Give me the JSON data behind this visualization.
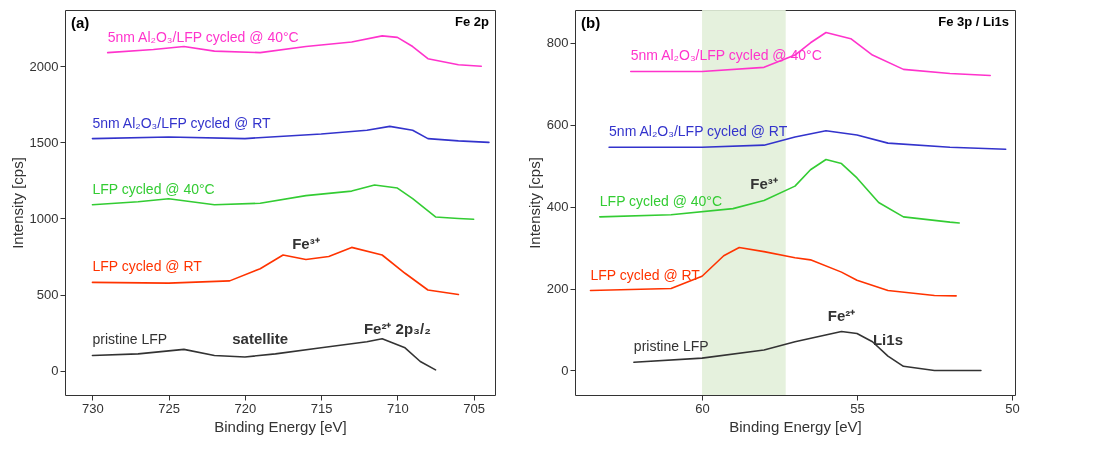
{
  "chart_data": [
    {
      "type": "line",
      "title": "(a)",
      "xlabel": "Binding Energy [eV]",
      "ylabel": "Intensity [cps]",
      "xlim": [
        731.8,
        703.6
      ],
      "xticks": [
        730,
        725,
        720,
        715,
        710,
        705
      ],
      "ylim": [
        -160,
        2370
      ],
      "yticks": [
        0,
        500,
        1000,
        1500,
        2000
      ],
      "grid": false,
      "legend": false,
      "series": [
        {
          "name": "5nm Al₂O₃/LFP cycled @ 40°C",
          "color": "#ff33cc",
          "x": [
            729,
            726,
            724,
            722,
            719,
            716,
            714,
            713,
            711,
            710,
            709,
            708,
            706,
            704.5
          ],
          "values": [
            2090,
            2110,
            2130,
            2100,
            2090,
            2130,
            2150,
            2160,
            2200,
            2190,
            2130,
            2050,
            2010,
            2000
          ]
        },
        {
          "name": "5nm Al₂O₃/LFP cycled @ RT",
          "color": "#3333cc",
          "x": [
            730,
            725,
            720,
            715,
            712,
            710.5,
            709,
            708,
            706,
            704
          ],
          "values": [
            1525,
            1535,
            1525,
            1555,
            1580,
            1605,
            1580,
            1525,
            1510,
            1500
          ]
        },
        {
          "name": "LFP cycled @ 40°C",
          "color": "#33cc33",
          "x": [
            730,
            727,
            725,
            722,
            719,
            716,
            713,
            711.5,
            710,
            709,
            707.5,
            706,
            705
          ],
          "values": [
            1090,
            1110,
            1130,
            1090,
            1100,
            1150,
            1180,
            1220,
            1200,
            1130,
            1010,
            1000,
            995
          ]
        },
        {
          "name": "LFP cycled @ RT",
          "color": "#ff3300",
          "x": [
            730,
            725,
            721,
            719,
            717.5,
            716,
            714.5,
            713,
            711,
            709.5,
            708,
            706
          ],
          "values": [
            580,
            575,
            590,
            670,
            760,
            730,
            750,
            810,
            760,
            640,
            530,
            500
          ]
        },
        {
          "name": "pristine LFP",
          "color": "#333333",
          "x": [
            730,
            727,
            724,
            722,
            720,
            718,
            715,
            712,
            711,
            709.5,
            708.5,
            707.5
          ],
          "values": [
            100,
            110,
            140,
            100,
            90,
            110,
            150,
            190,
            210,
            150,
            60,
            5
          ]
        }
      ],
      "annotations": [
        "Fe 2p",
        {
          "text": "Fe³⁺",
          "x": 716,
          "y": 730
        },
        {
          "text": "satellite",
          "x": 719,
          "y": 100
        },
        {
          "text": "Fe²⁺ 2p₃/₂",
          "x": 710,
          "y": 170
        }
      ]
    },
    {
      "type": "line",
      "title": "(b)",
      "xlabel": "Binding Energy [eV]",
      "ylabel": "Intensity [cps]",
      "xlim": [
        64.1,
        49.9
      ],
      "xticks": [
        60,
        55,
        50
      ],
      "ylim": [
        -60,
        880
      ],
      "yticks": [
        0,
        200,
        400,
        600,
        800
      ],
      "grid": false,
      "legend": false,
      "series": [
        {
          "name": "5nm Al₂O₃/LFP cycled @ 40°C",
          "color": "#ff33cc",
          "x": [
            62.3,
            60,
            58,
            57,
            56.5,
            56,
            55.2,
            54.5,
            53.5,
            52,
            50.7
          ],
          "values": [
            730,
            730,
            740,
            770,
            800,
            825,
            810,
            770,
            735,
            725,
            720
          ]
        },
        {
          "name": "5nm Al₂O₃/LFP cycled @ RT",
          "color": "#3333cc",
          "x": [
            63,
            60,
            58,
            57,
            56,
            55,
            54,
            52,
            50.2
          ],
          "values": [
            545,
            545,
            550,
            570,
            585,
            575,
            555,
            545,
            540
          ]
        },
        {
          "name": "LFP cycled @ 40°C",
          "color": "#33cc33",
          "x": [
            63.3,
            61,
            59,
            58,
            57,
            56.5,
            56,
            55.5,
            55,
            54.3,
            53.5,
            52,
            51.7
          ],
          "values": [
            375,
            380,
            395,
            415,
            450,
            490,
            515,
            505,
            470,
            410,
            375,
            362,
            360
          ]
        },
        {
          "name": "LFP cycled @ RT",
          "color": "#ff3300",
          "x": [
            63.6,
            61,
            60,
            59.3,
            58.8,
            58,
            57,
            56.5,
            55.5,
            55,
            54,
            52.5,
            51.8
          ],
          "values": [
            195,
            200,
            230,
            280,
            300,
            290,
            275,
            270,
            240,
            220,
            195,
            183,
            182
          ]
        },
        {
          "name": "pristine LFP",
          "color": "#333333",
          "x": [
            62.2,
            60,
            58,
            57,
            55.5,
            55,
            54.5,
            54,
            53.5,
            52.5,
            51
          ],
          "values": [
            20,
            30,
            50,
            70,
            95,
            90,
            70,
            35,
            10,
            0,
            0
          ]
        }
      ],
      "bands": [
        {
          "axis": "x",
          "from": 60,
          "to": 57.3,
          "color": "#e2efd9"
        }
      ],
      "annotations": [
        "Fe 3p / Li1s",
        {
          "text": "Fe³⁺",
          "x": 58,
          "y": 415
        },
        {
          "text": "Fe²⁺",
          "x": 55.5,
          "y": 95
        },
        {
          "text": "Li1s",
          "x": 54,
          "y": 35
        }
      ]
    }
  ]
}
